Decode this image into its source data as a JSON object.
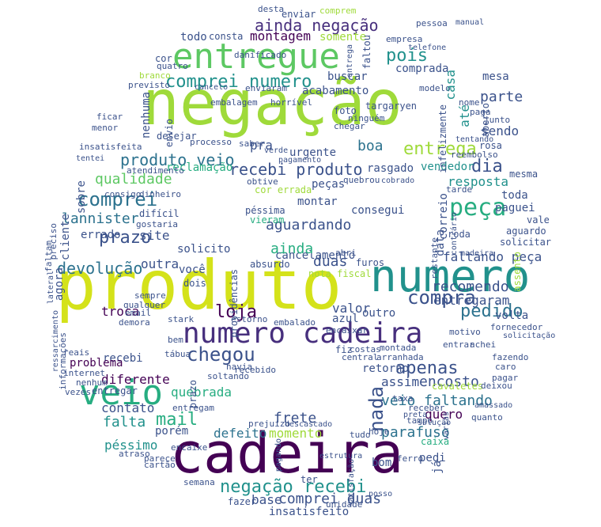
{
  "palette": {
    "dark_purple": "#440154",
    "purple": "#472f7d",
    "blue_purple": "#3b528b",
    "blue": "#2c728e",
    "teal": "#21918c",
    "green_teal": "#27ad81",
    "green": "#5dc863",
    "lime": "#9fda3a",
    "yellow": "#d4e21a",
    "bright_yellow": "#fde725"
  },
  "words": {
    "negacao": "negação",
    "produto": "produto",
    "numero": "numero",
    "cadeira": "cadeira",
    "entregue": "entregue",
    "veio": "veio",
    "numero_cadeira": "numero cadeira",
    "chegou": "chegou",
    "comprei": "comprei",
    "entrega": "entrega",
    "peca": "peça",
    "pedido": "pedido",
    "comprei_numero": "comprei numero",
    "ainda_negacao": "ainda negação",
    "produto_veio": "produto veio",
    "recebi_produto": "recebi produto",
    "negacao_recebi": "negação recebi",
    "comprei_duas": "comprei duas",
    "aguardando": "aguardando",
    "compra": "compra",
    "apenas": "apenas",
    "devolucao": "devolução",
    "qualidade": "qualidade",
    "prazo": "prazo",
    "loja": "loja",
    "mail": "mail",
    "contato": "contato",
    "falta": "falta",
    "veio_faltando": "veio faltando",
    "frete": "frete",
    "nada": "nada",
    "recomendo": "recomendo",
    "faltando_peca": "faltando peça",
    "montagem": "montagem",
    "pois": "pois",
    "encosto": "encosto",
    "lannister": "lannister",
    "reclamacao": "reclamação",
    "parafuso": "parafuso",
    "quero": "quero",
    "defeito": "defeito",
    "momento": "momento",
    "pessimo": "péssimo",
    "base": "base",
    "insatisfeito": "insatisfeito",
    "troca": "troca",
    "diferente": "diferente",
    "quebrada": "quebrada",
    "recebi": "recebi",
    "dia": "dia",
    "parte": "parte",
    "acabamento": "acabamento",
    "buscar": "buscar",
    "comprada": "comprada",
    "vendedor": "vendedor",
    "resposta": "resposta",
    "cancelamento": "cancelamento",
    "montar": "montar",
    "consegui": "consegui",
    "cor_errada": "cor errada",
    "boa": "boa",
    "errado": "errado",
    "site": "site",
    "solicito": "solicito",
    "outra": "outra",
    "sendo": "sendo",
    "rasgado": "rasgado",
    "urgente": "urgente",
    "sobre": "sobre",
    "agora": "agora",
    "cliente": "cliente",
    "enviar": "enviar",
    "desta": "desta",
    "comprem": "comprem",
    "casa": "casa",
    "nenhuma": "nenhuma",
    "ate": "até",
    "dois": "dois",
    "voce": "você",
    "ja": "já",
    "mesa": "mesa",
    "paguei": "paguei",
    "toda": "toda",
    "valor": "valor",
    "retorno": "retorno",
    "assim": "assim",
    "entregaram": "entregaram",
    "ir": "ir",
    "volta": "volta",
    "problema": "problema",
    "porem": "porém",
    "ainda": "ainda",
    "duas": "duas",
    "pra": "pra",
    "pecas": "peças",
    "outro": "outro",
    "azul": "azul",
    "todo": "todo",
    "consta": "consta",
    "somente": "somente",
    "entrega_word": "entrega",
    "fazer": "fazer",
    "ter": "ter",
    "bom": "bom",
    "pedi": "pedi",
    "atraso": "atraso",
    "recebemos": "recebemos",
    "correio": "correio",
    "data": "data",
    "aguardo": "aguardo",
    "vale": "vale",
    "solicitar": "solicitar",
    "assento": "assento",
    "faltam": "faltam",
    "preciso": "preciso",
    "consigo": "consigo",
    "dinheiro": "dinheiro",
    "dificil": "difícil",
    "gostaria": "gostaria",
    "atendimento": "atendimento",
    "insatisfeita": "insatisfeita",
    "desejar": "desejar",
    "processo": "processo",
    "mesma": "mesma",
    "rosa": "rosa",
    "embalagem": "embalagem",
    "danificado": "danificado",
    "horrivel": "horrível",
    "foto": "foto",
    "ninguem": "ninguém",
    "chegar": "chegar",
    "empresa": "empresa",
    "pessoa": "pessoa",
    "telefone": "telefone",
    "manual": "manual",
    "modelo": "modelo",
    "junto": "junto",
    "tarde": "tarde",
    "reembolso": "reembolso",
    "fiz": "fiz",
    "costas": "costas",
    "montada": "montada",
    "arranhada": "arranhada",
    "encaixar": "encaixar",
    "central": "central",
    "quebrou": "quebrou",
    "pessima": "péssima",
    "vieram": "vieram",
    "obtive": "obtive",
    "absurdo": "absurdo",
    "nota_fiscal": "nota fiscal",
    "furos": "furos",
    "abri": "abri",
    "email": "email",
    "qualquer": "qualquer",
    "sempre": "sempre",
    "demora": "demora",
    "stark": "stark",
    "estorno": "estorno",
    "embalado": "embalado",
    "recebido": "recebido",
    "soltando": "soltando",
    "havia": "havia",
    "tabua": "tábua",
    "internet": "internet",
    "nenhum": "nenhum",
    "vezes": "vezes",
    "entregar": "entregar",
    "entregam": "entregam",
    "cartao": "cartão",
    "parece": "parece",
    "semana": "semana",
    "unidade": "unidade",
    "prejuizo": "prejuízo",
    "descascado": "descascado",
    "hoje": "hoje",
    "tudo": "tudo",
    "estrutura": "estrutura",
    "satisfacao": "satisfação",
    "ferro": "ferro",
    "caixa": "caixa",
    "solucao": "solução",
    "varias": "várias",
    "tampo": "tampo",
    "preta": "preta",
    "quanto": "quanto",
    "receber": "receber",
    "cavaletes": "cavaletes",
    "deixou": "deixou",
    "pagar": "pagar",
    "caro": "caro",
    "fazendo": "fazendo",
    "achei": "achei",
    "entrar": "entrar",
    "motivo": "motivo",
    "fornecedor": "fornecedor",
    "solicitacao": "solicitação",
    "taxa": "taxa",
    "amassado": "amassado",
    "posso": "posso",
    "targaryen": "targaryen",
    "nome": "nome",
    "paga": "paga",
    "tentando": "tentando",
    "cobrado": "cobrado",
    "madeira": "madeira",
    "roda": "roda",
    "restante": "restante",
    "contrario": "contrário",
    "saber": "saber",
    "vou": "você",
    "encaixe": "encaixe",
    "aberto": "aberto",
    "infelizmente": "infelizmente",
    "faltou": "faltou",
    "ficar": "ficar",
    "menor": "menor",
    "envio": "envio",
    "previsto": "previsto",
    "branco": "branco",
    "quatro": "quatro",
    "cor": "cor",
    "tentei": "tentei",
    "enviaram": "enviaram",
    "cancelo": "cancelo",
    "verde": "verde",
    "pagamento": "pagamento",
    "providencias": "providências",
    "informacoes": "informações",
    "lateral": "lateral",
    "reais": "reais",
    "ressarcimento": "ressarcimento",
    "pagando": "pagando",
    "bem": "bem"
  }
}
